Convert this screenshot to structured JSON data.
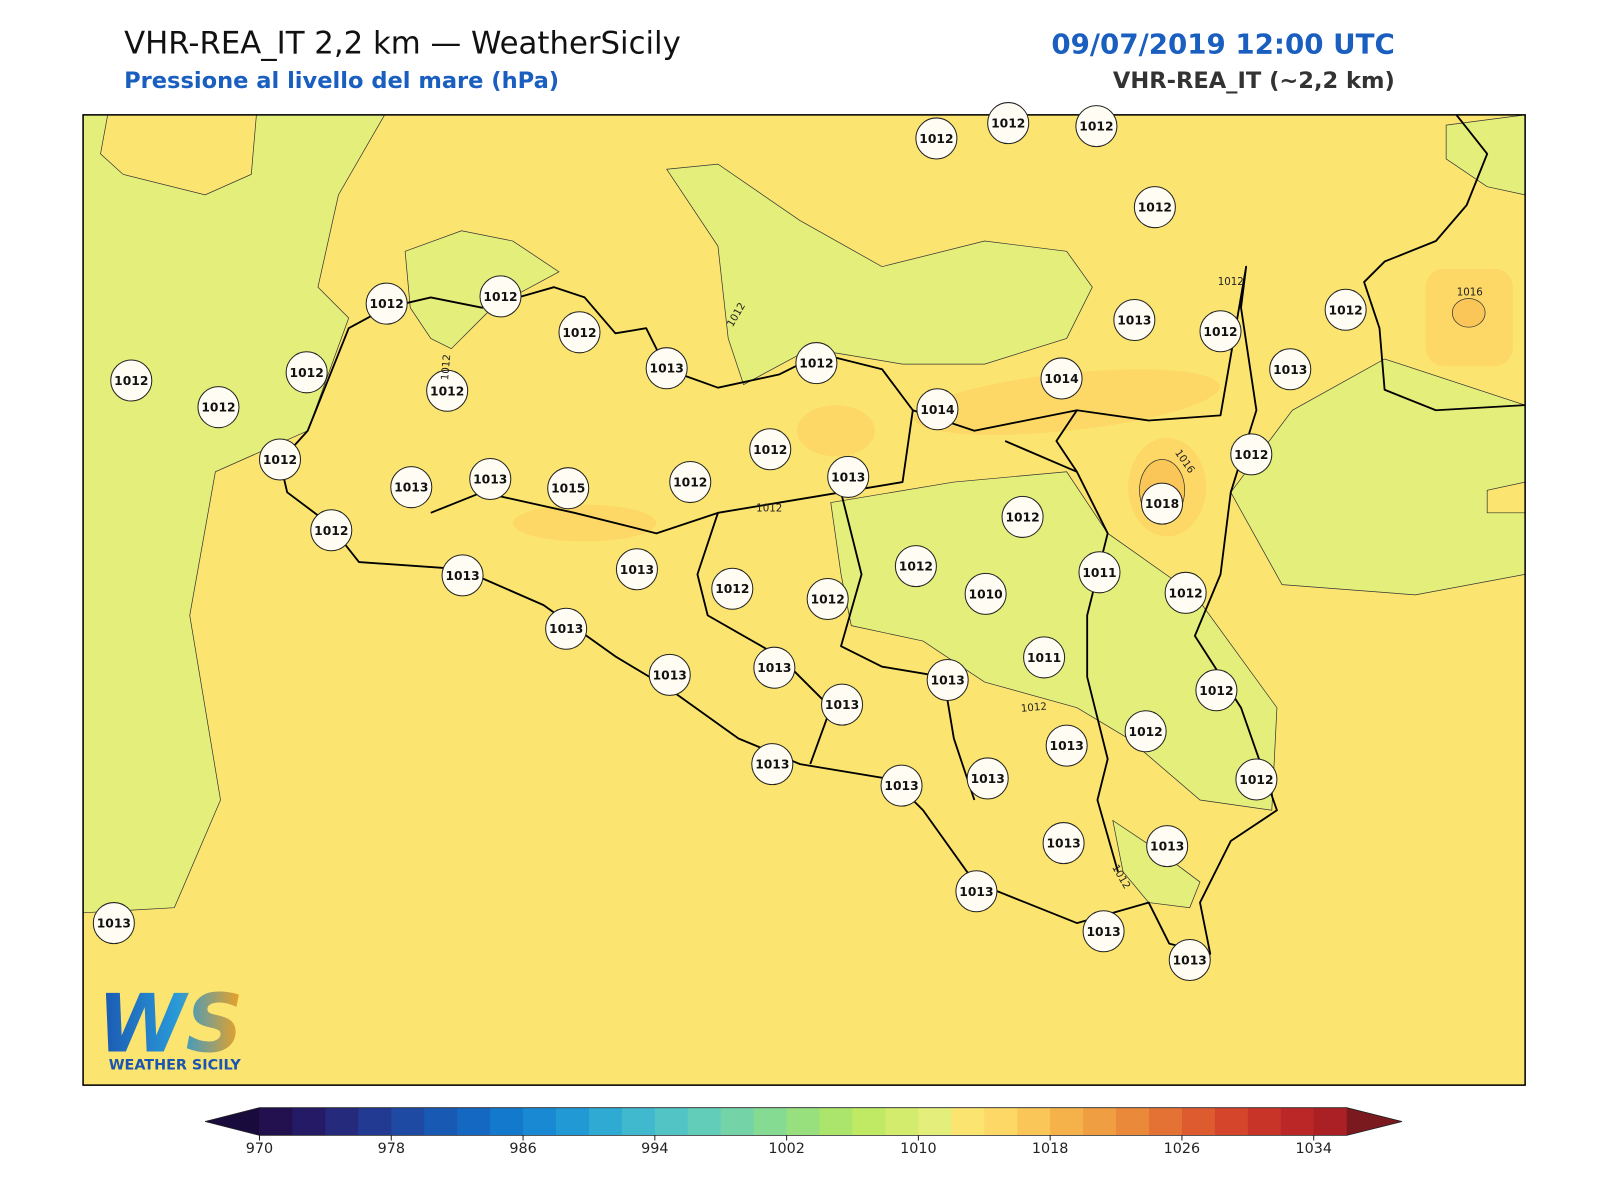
{
  "header": {
    "title": "VHR-REA_IT 2,2 km — WeatherSicily",
    "subtitle": "Pressione al livello del mare (hPa)",
    "datetime": "09/07/2019 12:00 UTC",
    "model": "VHR-REA_IT (~2,2 km)"
  },
  "map": {
    "stations": [
      1012,
      1012,
      1012,
      1012,
      1012,
      1012,
      1012,
      1013,
      1012,
      1013,
      1012,
      1012,
      1013,
      1012,
      1012,
      1012,
      1012,
      1014,
      1014,
      1012,
      1012,
      1012,
      1013,
      1013,
      1015,
      1012,
      1013,
      1018,
      1012,
      1012,
      1012,
      1013,
      1013,
      1012,
      1012,
      1010,
      1011,
      1012,
      1013,
      1011,
      1013,
      1013,
      1013,
      1013,
      1012,
      1013,
      1012,
      1013,
      1013,
      1013,
      1012,
      1013,
      1013,
      1013,
      1013,
      1013,
      1013
    ],
    "contour_labels": [
      1012,
      1012,
      1016,
      1016,
      1012,
      1012,
      1012,
      1012
    ]
  },
  "colorbar": {
    "range": [
      970,
      1036
    ],
    "ticks": [
      970,
      978,
      986,
      994,
      1002,
      1010,
      1018,
      1026,
      1034
    ],
    "colors": [
      "#23104f",
      "#251a66",
      "#262a7d",
      "#233a92",
      "#1e4aa3",
      "#1859b3",
      "#1468c2",
      "#1379cc",
      "#1889d2",
      "#2099d4",
      "#2eaad3",
      "#40b9cf",
      "#52c4c6",
      "#62cdb9",
      "#74d4a7",
      "#86db92",
      "#98e07e",
      "#abe56c",
      "#c0e964",
      "#d4ec6e",
      "#e4ee7a",
      "#fbe570",
      "#fdd866",
      "#f9c657",
      "#f5b24b",
      "#f09e42",
      "#eb893b",
      "#e57235",
      "#de5b30",
      "#d5452c",
      "#c93429",
      "#bb2727",
      "#ab2025"
    ],
    "under_color": "#1a0b3d",
    "over_color": "#7a1a1e"
  },
  "logo": {
    "mark": "WS",
    "name": "WEATHER SICILY"
  }
}
